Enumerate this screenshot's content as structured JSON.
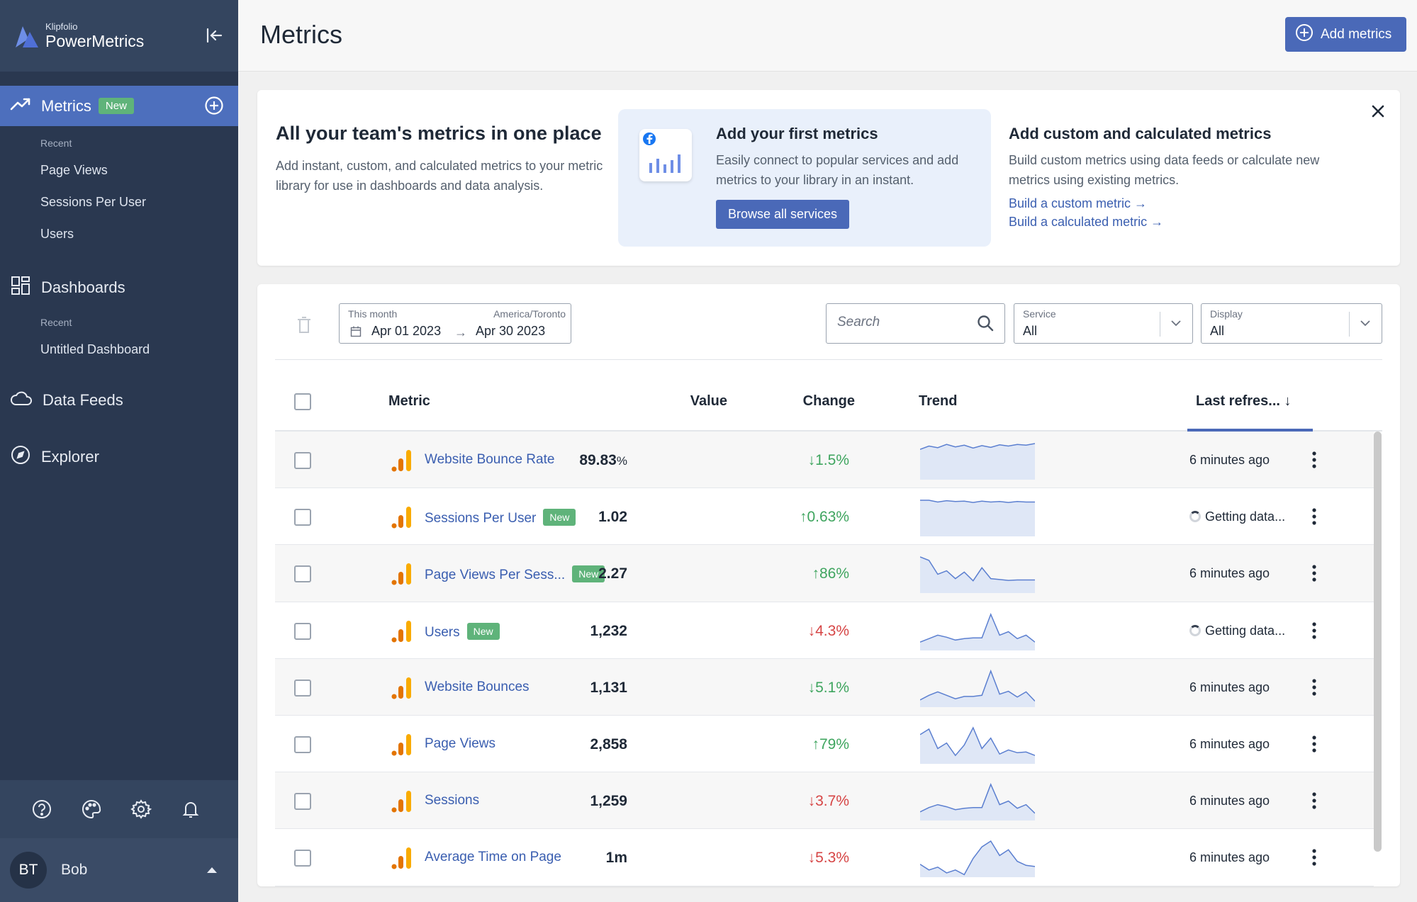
{
  "app": {
    "logo_small": "Klipfolio",
    "logo_big": "PowerMetrics"
  },
  "sidebar": {
    "metrics_label": "Metrics",
    "metrics_badge": "New",
    "recent_label": "Recent",
    "recent_metrics": [
      "Page Views",
      "Sessions Per User",
      "Users"
    ],
    "dashboards_label": "Dashboards",
    "recent_dashboards_label": "Recent",
    "recent_dashboards": [
      "Untitled Dashboard"
    ],
    "data_feeds_label": "Data Feeds",
    "explorer_label": "Explorer",
    "bottom_icons": [
      "help-icon",
      "palette-icon",
      "gear-icon",
      "bell-icon"
    ],
    "user_initials": "BT",
    "user_name": "Bob"
  },
  "header": {
    "title": "Metrics",
    "add_button_label": "Add metrics"
  },
  "onboarding": {
    "heading": "All your team's metrics in one place",
    "description": "Add instant, custom, and calculated metrics to your metric library for use in dashboards and data analysis.",
    "first_heading": "Add your first metrics",
    "first_description": "Easily connect to popular services and add metrics to your library in an instant.",
    "browse_label": "Browse all services",
    "custom_heading": "Add custom and calculated metrics",
    "custom_description": "Build custom metrics using data feeds or calculate new metrics using existing metrics.",
    "link_custom": "Build a custom metric →",
    "link_calculated": "Build a calculated metric →"
  },
  "filters": {
    "date_label": "This month",
    "timezone": "America/Toronto",
    "date_from": "Apr 01 2023",
    "date_arrow": "→",
    "date_to": "Apr 30 2023",
    "search_placeholder": "Search",
    "service_label": "Service",
    "service_value": "All",
    "display_label": "Display",
    "display_value": "All"
  },
  "table": {
    "columns": {
      "metric": "Metric",
      "value": "Value",
      "change": "Change",
      "trend": "Trend",
      "last_refreshed": "Last refres... ↓"
    },
    "rows": [
      {
        "name": "Website Bounce Rate",
        "badge": "",
        "value": "89.83",
        "unit": "%",
        "change": "↓1.5%",
        "dir": "up",
        "refreshed": "6 minutes ago",
        "loading": false,
        "trend": [
          70,
          78,
          74,
          82,
          76,
          80,
          73,
          79,
          75,
          81,
          78,
          82,
          80,
          84
        ]
      },
      {
        "name": "Sessions Per User",
        "badge": "New",
        "value": "1.02",
        "unit": "",
        "change": "↑0.63%",
        "dir": "up",
        "refreshed": "Getting data...",
        "loading": true,
        "trend": [
          80,
          80,
          76,
          79,
          77,
          78,
          75,
          78,
          76,
          77,
          75,
          77,
          76,
          76
        ]
      },
      {
        "name": "Page Views Per Sess...",
        "badge": "New",
        "value": "2.27",
        "unit": "",
        "change": "↑86%",
        "dir": "up",
        "refreshed": "6 minutes ago",
        "loading": false,
        "trend": [
          80,
          72,
          40,
          48,
          30,
          45,
          25,
          55,
          30,
          28,
          26,
          27,
          27,
          27
        ]
      },
      {
        "name": "Users",
        "badge": "New",
        "value": "1,232",
        "unit": "",
        "change": "↓4.3%",
        "dir": "down",
        "refreshed": "Getting data...",
        "loading": true,
        "trend": [
          10,
          15,
          20,
          17,
          13,
          15,
          16,
          16,
          50,
          20,
          25,
          15,
          20,
          10
        ]
      },
      {
        "name": "Website Bounces",
        "badge": "",
        "value": "1,131",
        "unit": "",
        "change": "↓5.1%",
        "dir": "up",
        "refreshed": "6 minutes ago",
        "loading": false,
        "trend": [
          10,
          18,
          24,
          18,
          12,
          16,
          16,
          18,
          60,
          20,
          25,
          15,
          24,
          8
        ]
      },
      {
        "name": "Page Views",
        "badge": "",
        "value": "2,858",
        "unit": "",
        "change": "↑79%",
        "dir": "up",
        "refreshed": "6 minutes ago",
        "loading": false,
        "trend": [
          40,
          48,
          20,
          28,
          10,
          25,
          50,
          20,
          35,
          12,
          18,
          14,
          15,
          10
        ]
      },
      {
        "name": "Sessions",
        "badge": "",
        "value": "1,259",
        "unit": "",
        "change": "↓3.7%",
        "dir": "down",
        "refreshed": "6 minutes ago",
        "loading": false,
        "trend": [
          10,
          16,
          20,
          17,
          13,
          15,
          16,
          16,
          48,
          20,
          25,
          15,
          20,
          8
        ]
      },
      {
        "name": "Average Time on Page",
        "badge": "",
        "value": "1m",
        "unit": "",
        "change": "↓5.3%",
        "dir": "down",
        "refreshed": "6 minutes ago",
        "loading": false,
        "trend": [
          20,
          10,
          15,
          5,
          10,
          2,
          30,
          50,
          60,
          35,
          45,
          25,
          18,
          16
        ]
      }
    ]
  },
  "colors": {
    "sidebar_bg": "#2a3850",
    "accent": "#4a69b8",
    "new_badge": "#5fb37a",
    "change_up": "#3fa55f",
    "change_down": "#d64545",
    "link": "#3a5eb0"
  }
}
